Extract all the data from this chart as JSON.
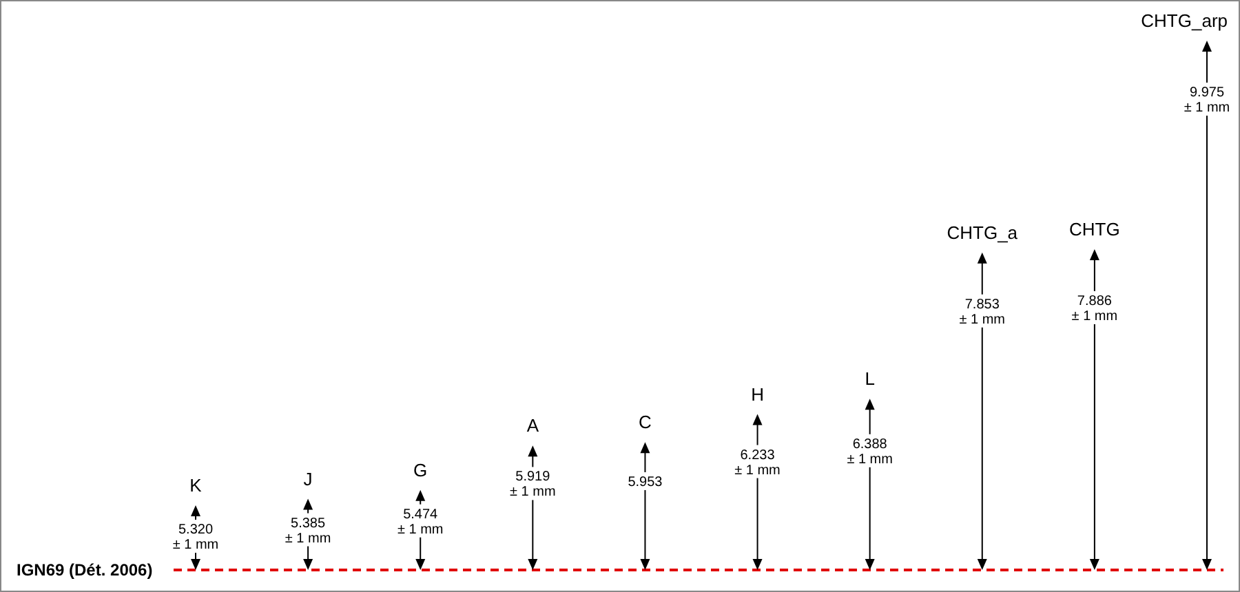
{
  "chart_data": {
    "type": "other",
    "categories": [
      "K",
      "J",
      "G",
      "A",
      "C",
      "H",
      "L",
      "CHTG_a",
      "CHTG",
      "CHTG_arp"
    ],
    "values": [
      5.32,
      5.385,
      5.474,
      5.919,
      5.953,
      6.233,
      6.388,
      7.853,
      7.886,
      9.975
    ],
    "value_labels": [
      "5.320\n± 1 mm",
      "5.385\n± 1 mm",
      "5.474\n± 1 mm",
      "5.919\n± 1 mm",
      "5.953",
      "6.233\n± 1 mm",
      "6.388\n± 1 mm",
      "7.853\n± 1 mm",
      "7.886\n± 1 mm",
      "9.975\n± 1 mm"
    ],
    "annotations": [
      "IGN69 (Dét. 2006)"
    ]
  }
}
